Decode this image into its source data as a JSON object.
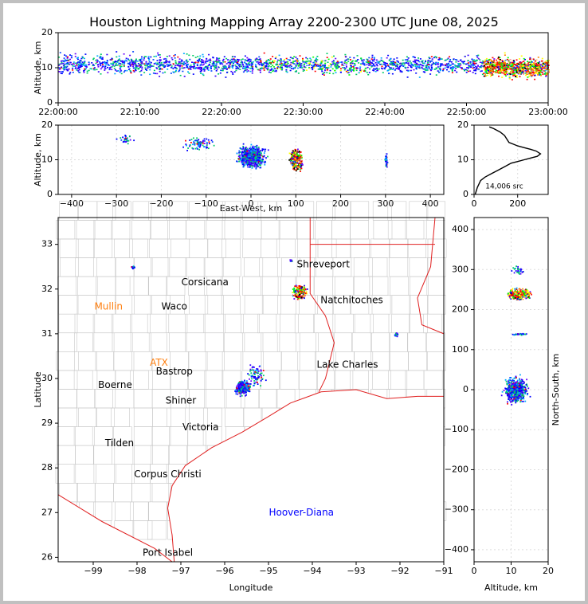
{
  "title": "Houston Lightning Mapping Array 2200-2300 UTC June 08, 2025",
  "chart_data": [
    {
      "type": "scatter",
      "panel": "time-altitude",
      "ylabel": "Altitude, km",
      "x_range": [
        "22:00:00",
        "23:00:00"
      ],
      "ylim": [
        0,
        20
      ],
      "x_ticks": [
        "22:00:00",
        "22:10:00",
        "22:20:00",
        "22:30:00",
        "22:40:00",
        "22:50:00",
        "23:00:00"
      ],
      "y_ticks": [
        "0",
        "10",
        "20"
      ],
      "density": [
        {
          "x": "22:00",
          "y_min": 5,
          "y_max": 18,
          "level": "low"
        },
        {
          "x": "22:30",
          "y_min": 5,
          "y_max": 18,
          "level": "medium"
        },
        {
          "x": "22:55",
          "y_min": 3,
          "y_max": 15,
          "level": "high"
        }
      ]
    },
    {
      "type": "scatter",
      "panel": "east-west-altitude",
      "xlabel": "East-West, km",
      "ylabel": "Altitude, km",
      "xlim": [
        -430,
        430
      ],
      "ylim": [
        0,
        20
      ],
      "x_ticks": [
        "-400",
        "-300",
        "-200",
        "-100",
        "0",
        "100",
        "200",
        "300",
        "400"
      ],
      "y_ticks": [
        "0",
        "10",
        "20"
      ],
      "clusters": [
        {
          "x_center": 100,
          "y_center": 10,
          "level": "high"
        },
        {
          "x_center": 0,
          "y_center": 10,
          "level": "low"
        },
        {
          "x_center": 300,
          "y_center": 10,
          "level": "low"
        },
        {
          "x_center": -280,
          "y_center": 17,
          "level": "low"
        }
      ]
    },
    {
      "type": "line",
      "panel": "altitude-histogram",
      "xlim": [
        0,
        340
      ],
      "ylim": [
        0,
        20
      ],
      "x_ticks": [
        "0",
        "200"
      ],
      "y_ticks": [
        "0",
        "10",
        "20"
      ],
      "annotation": "14,006 src",
      "x": [
        5,
        15,
        30,
        50,
        80,
        110,
        140,
        170,
        200,
        230,
        260,
        290,
        305,
        285,
        260,
        230,
        200,
        180,
        160,
        150,
        140,
        120,
        90,
        70
      ],
      "y": [
        0,
        2,
        4,
        5,
        6,
        7,
        8,
        9,
        9.5,
        10,
        10.5,
        11,
        11.7,
        12.5,
        13,
        13.5,
        14,
        14.5,
        15,
        16,
        17,
        18,
        19,
        19.5
      ]
    },
    {
      "type": "scatter",
      "panel": "plan-view-map",
      "xlabel": "Longitude",
      "ylabel": "Latitude",
      "xlim": [
        -99.8,
        -91
      ],
      "ylim": [
        25.9,
        33.6
      ],
      "x_ticks": [
        "−99",
        "−98",
        "−97",
        "−96",
        "−95",
        "−94",
        "−93",
        "−92",
        "−91"
      ],
      "y_ticks": [
        "26",
        "27",
        "28",
        "29",
        "30",
        "31",
        "32",
        "33"
      ],
      "cities": [
        {
          "name": "Shreveport",
          "lon": -93.75,
          "lat": 32.55,
          "color": "#000000"
        },
        {
          "name": "Corsicana",
          "lon": -96.45,
          "lat": 32.15,
          "color": "#000000"
        },
        {
          "name": "Mullin",
          "lon": -98.65,
          "lat": 31.6,
          "color": "#ff7f0e"
        },
        {
          "name": "Waco",
          "lon": -97.15,
          "lat": 31.6,
          "color": "#000000"
        },
        {
          "name": "Natchitoches",
          "lon": -93.1,
          "lat": 31.75,
          "color": "#000000"
        },
        {
          "name": "ATX",
          "lon": -97.5,
          "lat": 30.35,
          "color": "#ff7f0e"
        },
        {
          "name": "Bastrop",
          "lon": -97.15,
          "lat": 30.15,
          "color": "#000000"
        },
        {
          "name": "Lake Charles",
          "lon": -93.2,
          "lat": 30.3,
          "color": "#000000"
        },
        {
          "name": "Boerne",
          "lon": -98.5,
          "lat": 29.85,
          "color": "#000000"
        },
        {
          "name": "Shiner",
          "lon": -97.0,
          "lat": 29.5,
          "color": "#000000"
        },
        {
          "name": "Victoria",
          "lon": -96.55,
          "lat": 28.9,
          "color": "#000000"
        },
        {
          "name": "Tilden",
          "lon": -98.4,
          "lat": 28.55,
          "color": "#000000"
        },
        {
          "name": "Corpus Christi",
          "lon": -97.3,
          "lat": 27.85,
          "color": "#000000"
        },
        {
          "name": "Hoover-Diana",
          "lon": -94.25,
          "lat": 27.0,
          "color": "#0000ff"
        },
        {
          "name": "Port Isabel",
          "lon": -97.3,
          "lat": 26.1,
          "color": "#000000"
        }
      ],
      "clusters": [
        {
          "lon": -94.3,
          "lat": 31.95,
          "level": "high"
        },
        {
          "lon": -95.6,
          "lat": 29.8,
          "level": "low"
        },
        {
          "lon": -92.1,
          "lat": 31.0,
          "level": "low"
        },
        {
          "lon": -94.5,
          "lat": 32.65,
          "level": "low"
        }
      ]
    },
    {
      "type": "scatter",
      "panel": "altitude-north-south",
      "xlabel": "Altitude, km",
      "ylabel": "North-South, km",
      "xlim": [
        0,
        20
      ],
      "ylim": [
        -430,
        430
      ],
      "x_ticks": [
        "0",
        "10",
        "20"
      ],
      "y_ticks": [
        "−400",
        "−300",
        "−200",
        "−100",
        "0",
        "100",
        "200",
        "300",
        "400"
      ],
      "clusters": [
        {
          "x_center": 12,
          "y_center": 240,
          "level": "high"
        },
        {
          "x_center": 12,
          "y_center": 0,
          "level": "low"
        },
        {
          "x_center": 12,
          "y_center": 140,
          "level": "low"
        }
      ]
    }
  ]
}
